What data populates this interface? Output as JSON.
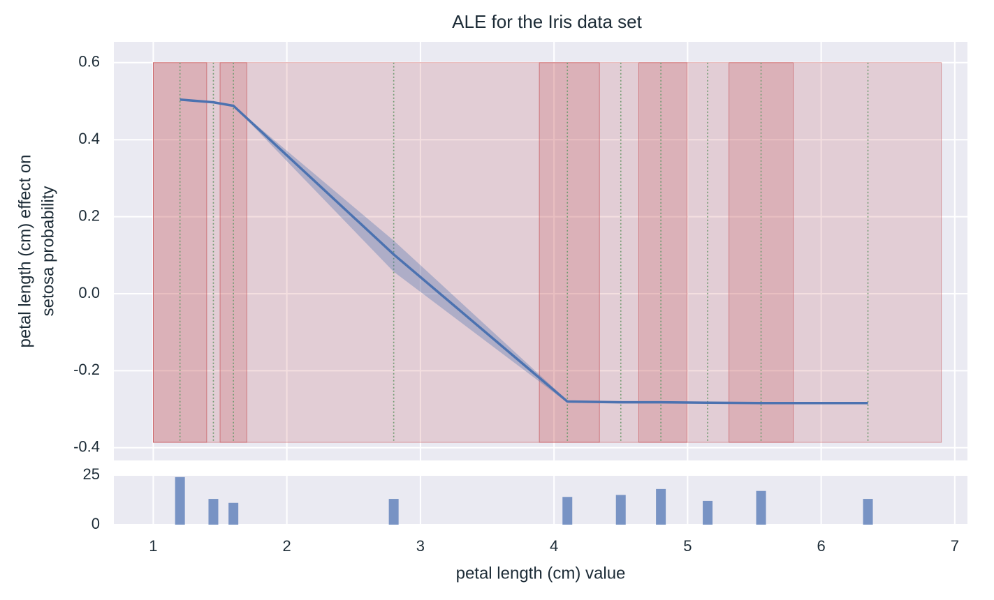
{
  "chart_data": [
    {
      "type": "line",
      "title": "ALE for the Iris data set",
      "ylabel": [
        "petal length (cm) effect on",
        "setosa probability"
      ],
      "x": [
        1.2,
        1.45,
        1.6,
        2.8,
        4.1,
        4.5,
        4.8,
        5.15,
        5.55,
        6.35
      ],
      "values": [
        0.504,
        0.497,
        0.488,
        0.102,
        -0.28,
        -0.282,
        -0.282,
        -0.283,
        -0.284,
        -0.284
      ],
      "lower": [
        0.504,
        0.497,
        0.488,
        0.057,
        -0.283,
        -0.284,
        -0.284,
        -0.285,
        -0.286,
        -0.286
      ],
      "upper": [
        0.504,
        0.497,
        0.488,
        0.138,
        -0.277,
        -0.28,
        -0.28,
        -0.281,
        -0.282,
        -0.282
      ],
      "color": "#4c72b0",
      "intervals": [
        [
          1.0,
          1.4
        ],
        [
          1.5,
          1.7
        ],
        [
          3.89,
          4.34
        ],
        [
          4.635,
          4.995
        ],
        [
          5.31,
          5.79
        ]
      ],
      "span": [
        1.0,
        6.9
      ],
      "span_ylim": [
        -0.386,
        0.6
      ],
      "span_color": "#c44e52",
      "xlim": [
        0.705,
        7.095
      ],
      "xticks": [
        1,
        2,
        3,
        4,
        5,
        6,
        7
      ],
      "ylim": [
        -0.433,
        0.654
      ],
      "yticks": [
        -0.4,
        -0.2,
        {
          "value": 0,
          "label": "0.0"
        },
        0.2,
        0.4,
        0.6
      ],
      "grid": true
    },
    {
      "type": "bar",
      "xlabel": "petal length (cm) value",
      "x": [
        1.2,
        1.45,
        1.6,
        2.8,
        4.1,
        4.5,
        4.8,
        5.15,
        5.55,
        6.35
      ],
      "values": [
        24,
        13,
        11,
        13,
        14,
        15,
        18,
        12,
        17,
        13
      ],
      "color": "#7893c4",
      "xlim": [
        0.705,
        7.095
      ],
      "xticks": [
        1,
        2,
        3,
        4,
        5,
        6,
        7
      ],
      "ylim": [
        0,
        25.35
      ],
      "yticks": [
        0,
        25
      ],
      "grid": true
    }
  ]
}
